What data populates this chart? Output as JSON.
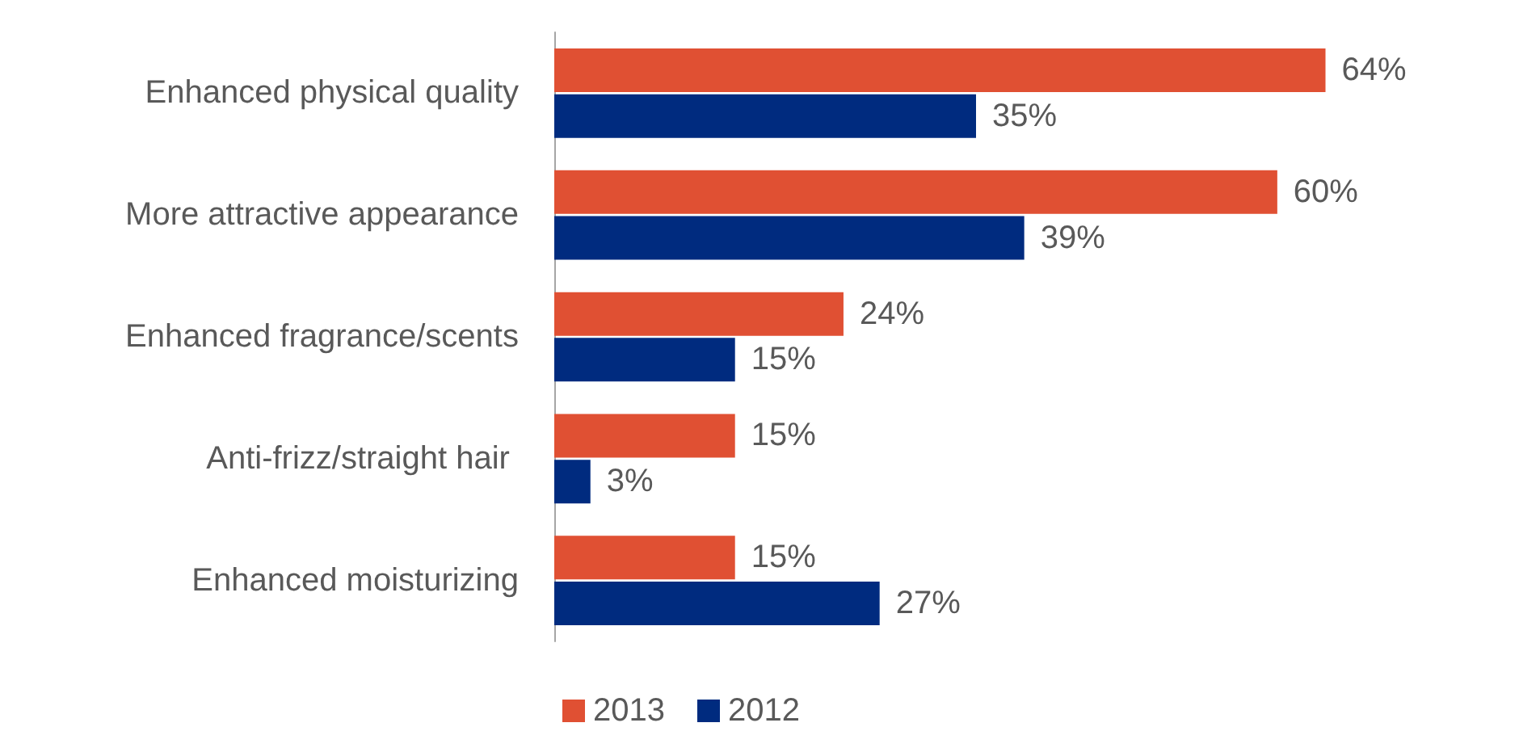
{
  "chart_data": {
    "type": "bar",
    "orientation": "horizontal",
    "categories": [
      "Enhanced physical quality",
      "More attractive appearance",
      "Enhanced fragrance/scents",
      "Anti-frizz/straight hair ",
      "Enhanced moisturizing"
    ],
    "series": [
      {
        "name": "2013",
        "color": "#e05033",
        "values": [
          64,
          60,
          24,
          15,
          15
        ],
        "value_labels": [
          "64%",
          "60%",
          "24%",
          "15%",
          "15%"
        ]
      },
      {
        "name": "2012",
        "color": "#002b7f",
        "values": [
          35,
          39,
          15,
          3,
          27
        ],
        "value_labels": [
          "35%",
          "39%",
          "15%",
          "3%",
          "27%"
        ]
      }
    ],
    "legend": "bottom",
    "grid": false,
    "tick_labels": "y"
  }
}
